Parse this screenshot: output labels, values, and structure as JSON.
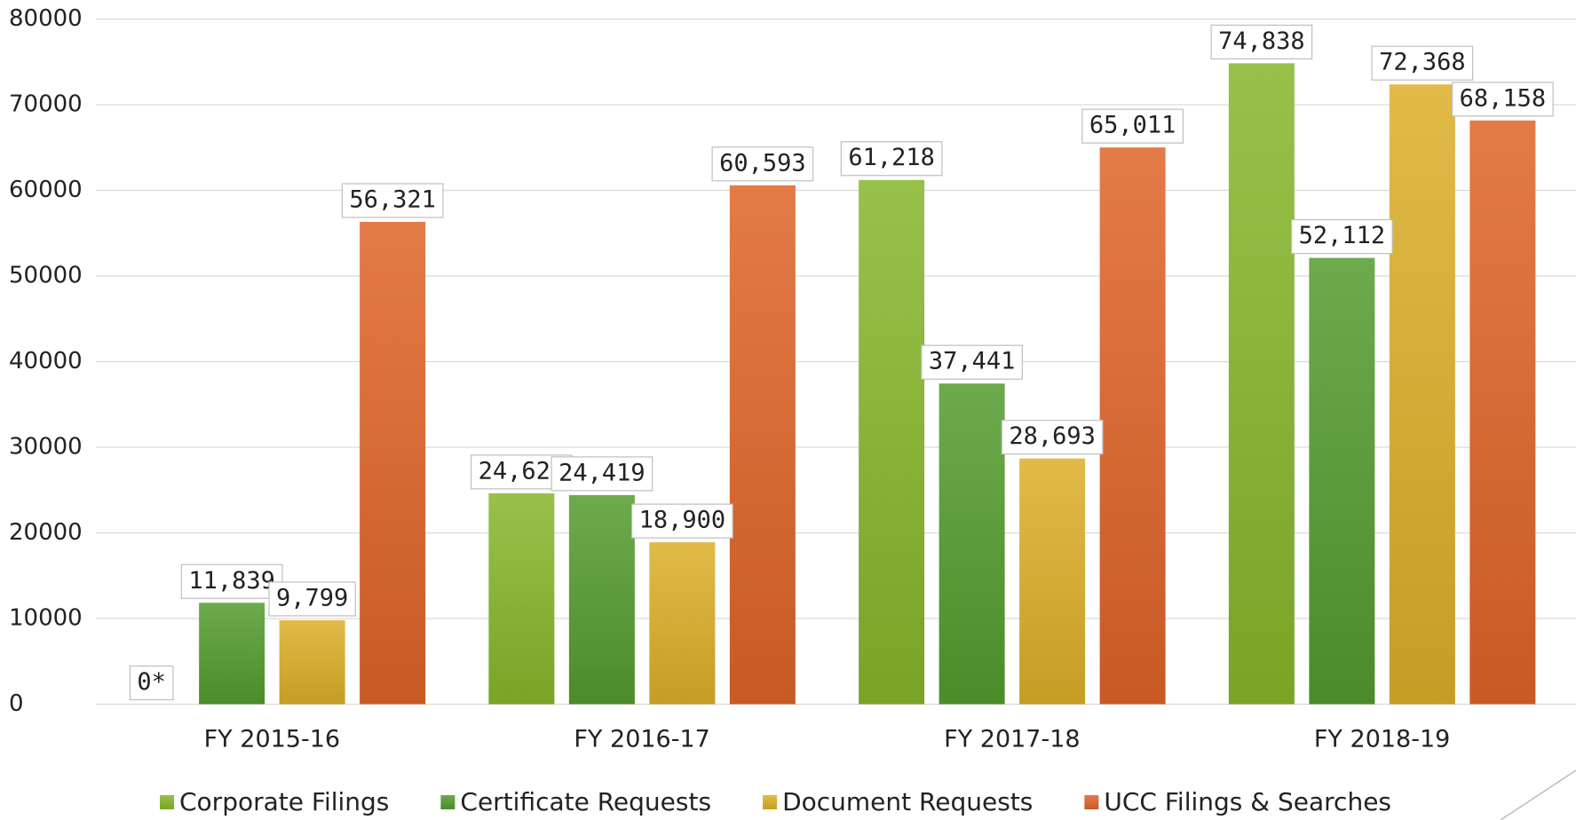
{
  "chart_data": {
    "type": "bar",
    "categories": [
      "FY 2015-16",
      "FY 2016-17",
      "FY 2017-18",
      "FY 2018-19"
    ],
    "series": [
      {
        "name": "Corporate Filings",
        "color": "#86b62a",
        "values": [
          0,
          24626,
          61218,
          74838
        ],
        "value_labels": [
          "0*",
          "24,626",
          "61,218",
          "74,838"
        ]
      },
      {
        "name": "Certificate Requests",
        "color": "#539b2e",
        "values": [
          11839,
          24419,
          37441,
          52112
        ],
        "value_labels": [
          "11,839",
          "24,419",
          "37,441",
          "52,112"
        ]
      },
      {
        "name": "Document Requests",
        "color": "#dcae28",
        "values": [
          9799,
          18900,
          28693,
          72368
        ],
        "value_labels": [
          "9,799",
          "18,900",
          "28,693",
          "72,368"
        ]
      },
      {
        "name": "UCC Filings & Searches",
        "color": "#de6428",
        "values": [
          56321,
          60593,
          65011,
          68158
        ],
        "value_labels": [
          "56,321",
          "60,593",
          "65,011",
          "68,158"
        ]
      }
    ],
    "ylim": [
      0,
      80000
    ],
    "yticks": [
      0,
      10000,
      20000,
      30000,
      40000,
      50000,
      60000,
      70000,
      80000
    ],
    "grid": true,
    "legend": "bottom"
  }
}
